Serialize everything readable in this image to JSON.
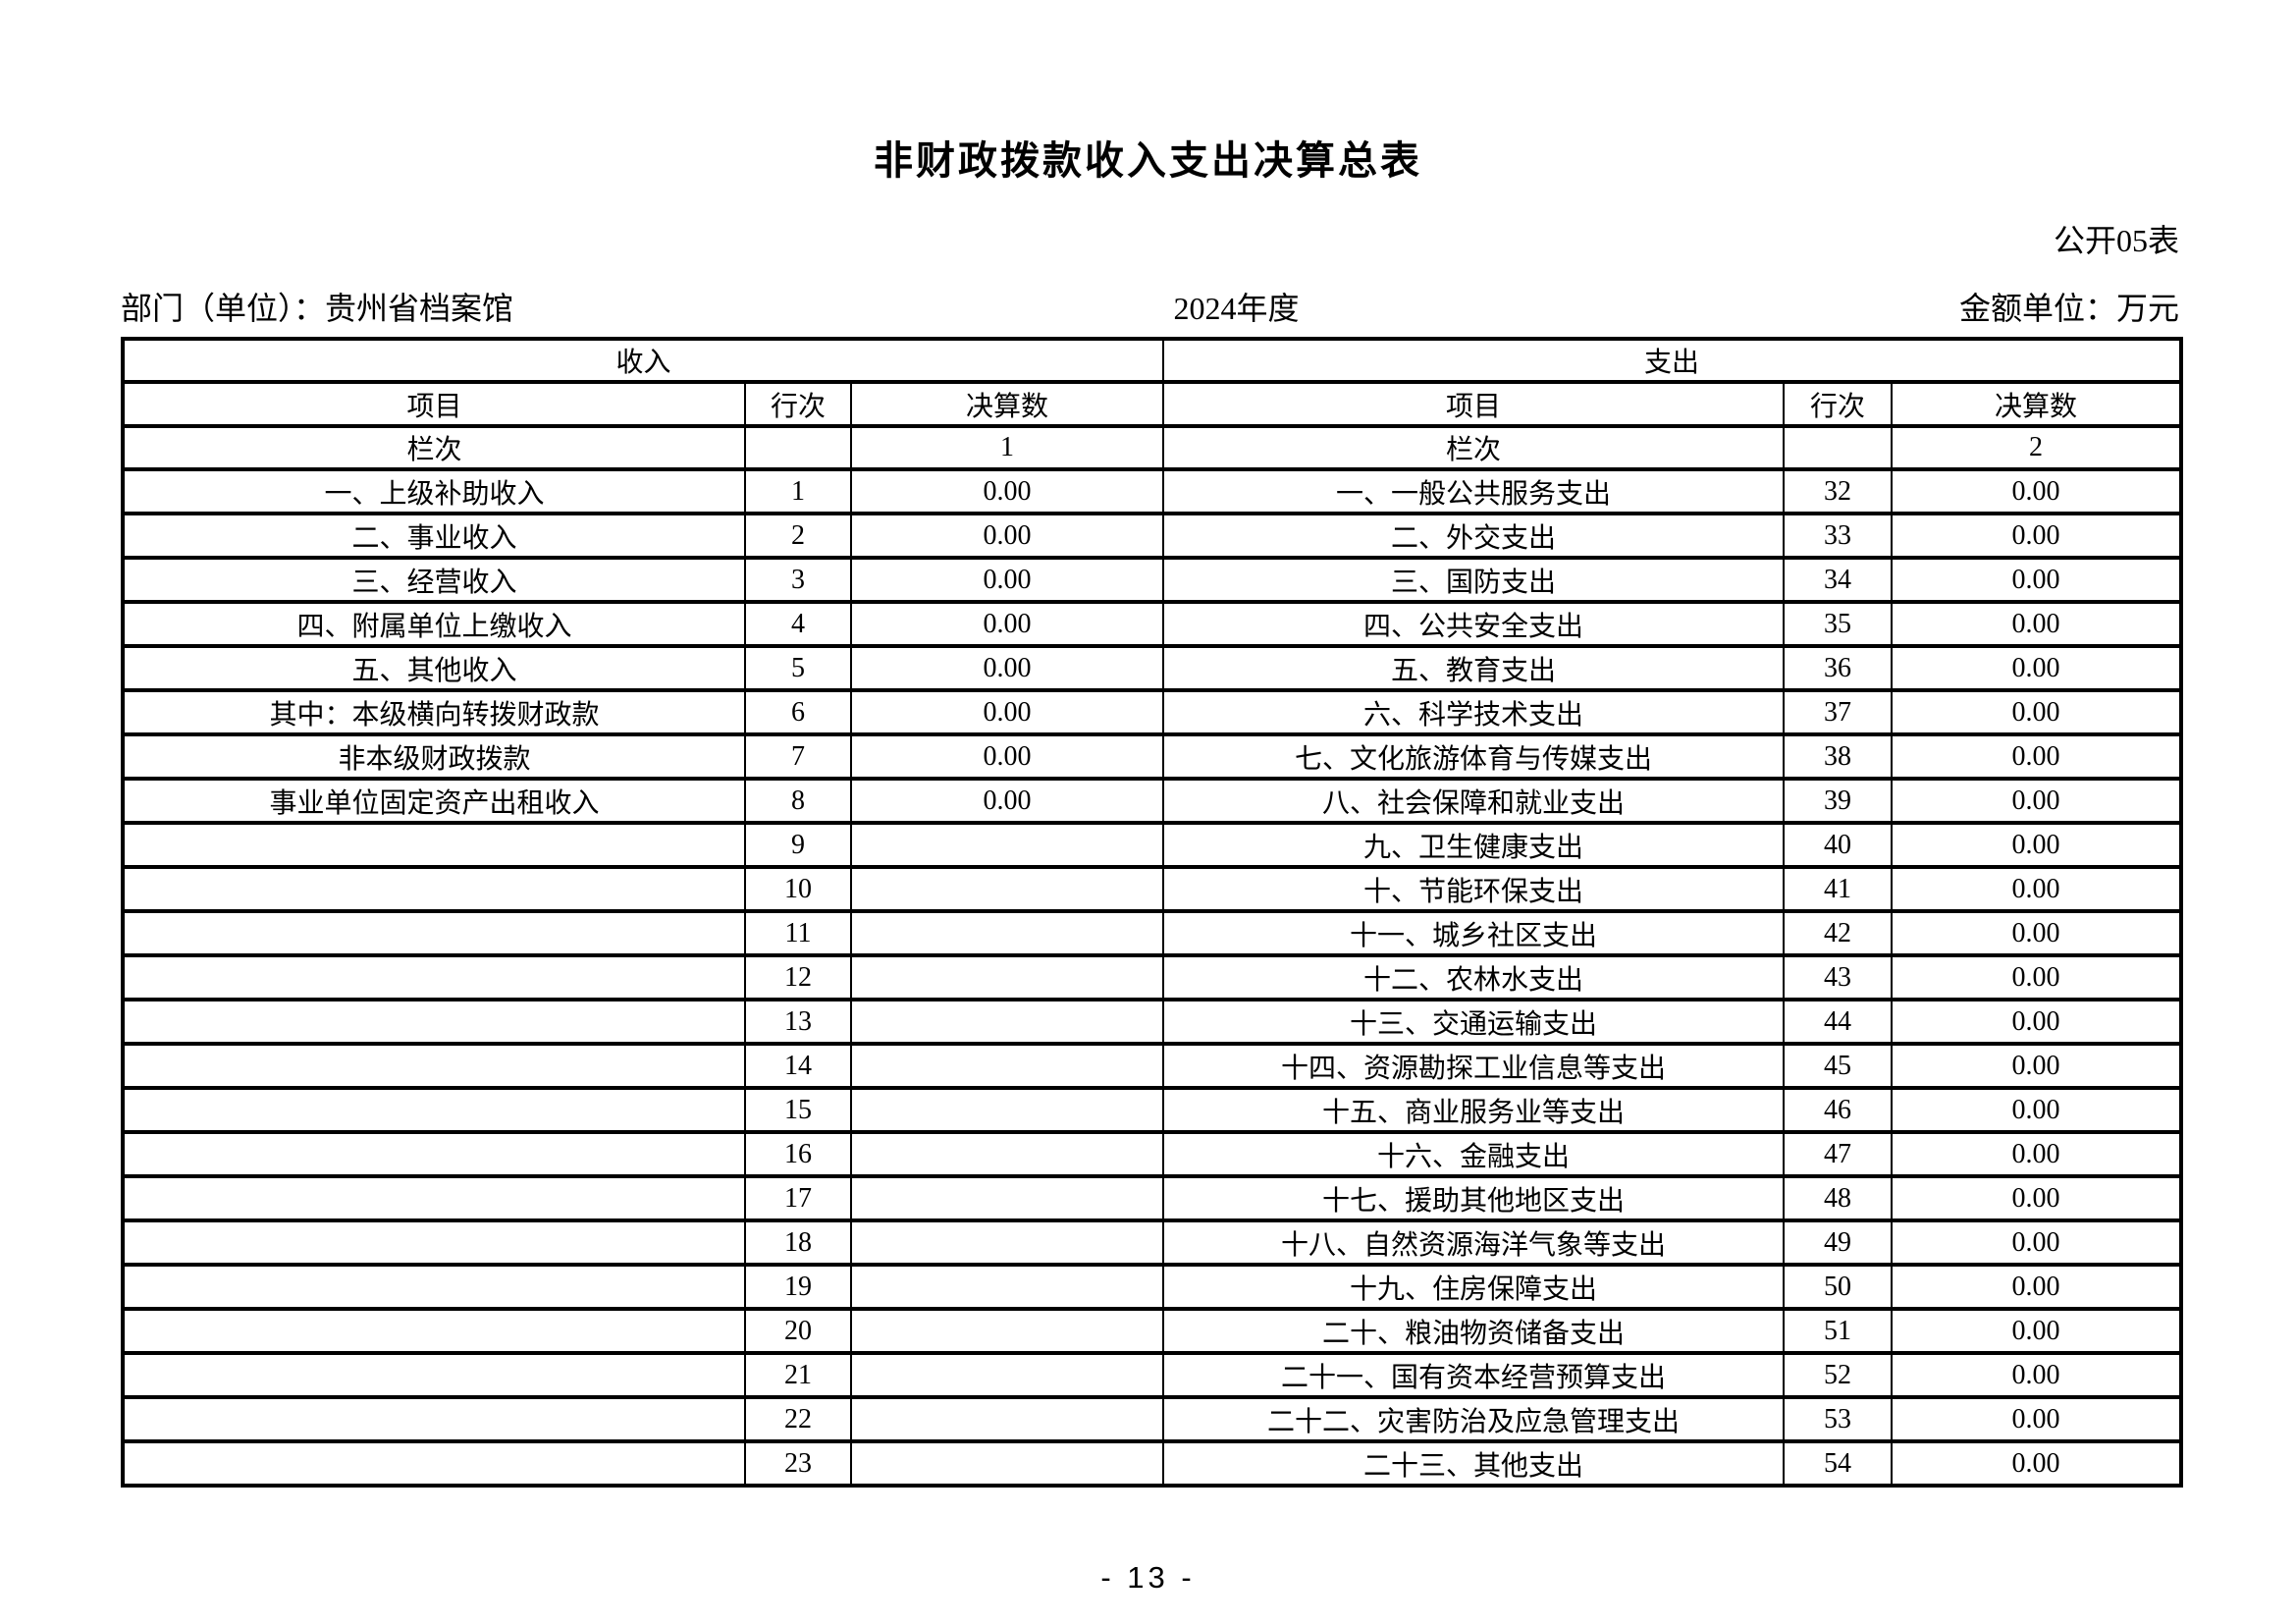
{
  "page": {
    "title": "非财政拨款收入支出决算总表",
    "form_code": "公开05表",
    "department_label": "部门（单位）：贵州省档案馆",
    "fiscal_year": "2024年度",
    "amount_unit_label": "金额单位：万元",
    "page_number": "- 13 -"
  },
  "table": {
    "income_section_header": "收入",
    "expense_section_header": "支出",
    "col_headers": {
      "item": "项目",
      "line_no": "行次",
      "amount": "决算数"
    },
    "column_index_row": {
      "label_income": "栏次",
      "income_col_index": "1",
      "label_expense": "栏次",
      "expense_col_index": "2"
    },
    "rows": [
      {
        "left_item": "一、上级补助收入",
        "left_line": "1",
        "left_value": "0.00",
        "right_item": "一、一般公共服务支出",
        "right_line": "32",
        "right_value": "0.00"
      },
      {
        "left_item": "二、事业收入",
        "left_line": "2",
        "left_value": "0.00",
        "right_item": "二、外交支出",
        "right_line": "33",
        "right_value": "0.00"
      },
      {
        "left_item": "三、经营收入",
        "left_line": "3",
        "left_value": "0.00",
        "right_item": "三、国防支出",
        "right_line": "34",
        "right_value": "0.00"
      },
      {
        "left_item": "四、附属单位上缴收入",
        "left_line": "4",
        "left_value": "0.00",
        "right_item": "四、公共安全支出",
        "right_line": "35",
        "right_value": "0.00"
      },
      {
        "left_item": "五、其他收入",
        "left_line": "5",
        "left_value": "0.00",
        "right_item": "五、教育支出",
        "right_line": "36",
        "right_value": "0.00"
      },
      {
        "left_item": "其中：本级横向转拨财政款",
        "left_line": "6",
        "left_value": "0.00",
        "right_item": "六、科学技术支出",
        "right_line": "37",
        "right_value": "0.00"
      },
      {
        "left_item": "非本级财政拨款",
        "left_line": "7",
        "left_value": "0.00",
        "right_item": "七、文化旅游体育与传媒支出",
        "right_line": "38",
        "right_value": "0.00"
      },
      {
        "left_item": "事业单位固定资产出租收入",
        "left_line": "8",
        "left_value": "0.00",
        "right_item": "八、社会保障和就业支出",
        "right_line": "39",
        "right_value": "0.00"
      },
      {
        "left_item": "",
        "left_line": "9",
        "left_value": "",
        "right_item": "九、卫生健康支出",
        "right_line": "40",
        "right_value": "0.00"
      },
      {
        "left_item": "",
        "left_line": "10",
        "left_value": "",
        "right_item": "十、节能环保支出",
        "right_line": "41",
        "right_value": "0.00"
      },
      {
        "left_item": "",
        "left_line": "11",
        "left_value": "",
        "right_item": "十一、城乡社区支出",
        "right_line": "42",
        "right_value": "0.00"
      },
      {
        "left_item": "",
        "left_line": "12",
        "left_value": "",
        "right_item": "十二、农林水支出",
        "right_line": "43",
        "right_value": "0.00"
      },
      {
        "left_item": "",
        "left_line": "13",
        "left_value": "",
        "right_item": "十三、交通运输支出",
        "right_line": "44",
        "right_value": "0.00"
      },
      {
        "left_item": "",
        "left_line": "14",
        "left_value": "",
        "right_item": "十四、资源勘探工业信息等支出",
        "right_line": "45",
        "right_value": "0.00"
      },
      {
        "left_item": "",
        "left_line": "15",
        "left_value": "",
        "right_item": "十五、商业服务业等支出",
        "right_line": "46",
        "right_value": "0.00"
      },
      {
        "left_item": "",
        "left_line": "16",
        "left_value": "",
        "right_item": "十六、金融支出",
        "right_line": "47",
        "right_value": "0.00"
      },
      {
        "left_item": "",
        "left_line": "17",
        "left_value": "",
        "right_item": "十七、援助其他地区支出",
        "right_line": "48",
        "right_value": "0.00"
      },
      {
        "left_item": "",
        "left_line": "18",
        "left_value": "",
        "right_item": "十八、自然资源海洋气象等支出",
        "right_line": "49",
        "right_value": "0.00"
      },
      {
        "left_item": "",
        "left_line": "19",
        "left_value": "",
        "right_item": "十九、住房保障支出",
        "right_line": "50",
        "right_value": "0.00"
      },
      {
        "left_item": "",
        "left_line": "20",
        "left_value": "",
        "right_item": "二十、粮油物资储备支出",
        "right_line": "51",
        "right_value": "0.00"
      },
      {
        "left_item": "",
        "left_line": "21",
        "left_value": "",
        "right_item": "二十一、国有资本经营预算支出",
        "right_line": "52",
        "right_value": "0.00"
      },
      {
        "left_item": "",
        "left_line": "22",
        "left_value": "",
        "right_item": "二十二、灾害防治及应急管理支出",
        "right_line": "53",
        "right_value": "0.00"
      },
      {
        "left_item": "",
        "left_line": "23",
        "left_value": "",
        "right_item": "二十三、其他支出",
        "right_line": "54",
        "right_value": "0.00"
      }
    ]
  }
}
